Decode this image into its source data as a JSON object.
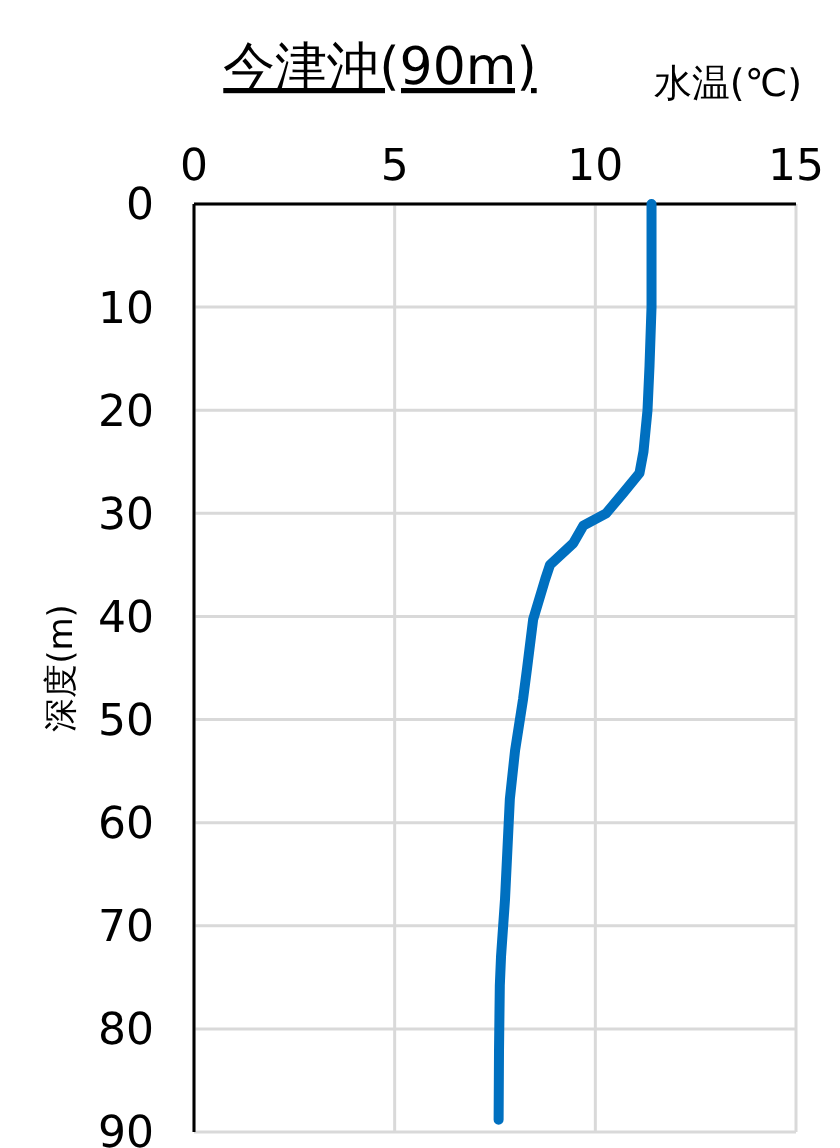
{
  "chart_data": {
    "type": "line",
    "title": "今津沖(90m)",
    "xlabel": "水温(℃)",
    "ylabel": "深度(m)",
    "series": [
      {
        "color": "#0070c0",
        "x": [
          11.4,
          11.4,
          11.35,
          11.3,
          11.2,
          11.1,
          10.7,
          10.27,
          9.7,
          9.45,
          8.87,
          8.75,
          8.45,
          8.3,
          8.2,
          8.0,
          7.87,
          7.75,
          7.65,
          7.62,
          7.6,
          7.59
        ],
        "values": [
          0,
          10,
          15.7,
          20,
          24,
          26.1,
          28,
          30,
          31.2,
          32.9,
          35,
          36.4,
          40.3,
          45,
          48,
          53,
          57.7,
          67.4,
          73,
          75.8,
          82,
          88.8
        ]
      }
    ],
    "xlim": [
      0,
      15
    ],
    "xticks": [
      0,
      5,
      10,
      15
    ],
    "ylim": [
      90,
      0
    ],
    "yticks": [
      0,
      10,
      20,
      30,
      40,
      50,
      60,
      70,
      80,
      90
    ],
    "grid": true,
    "marker": "none",
    "line_style": "solid"
  }
}
